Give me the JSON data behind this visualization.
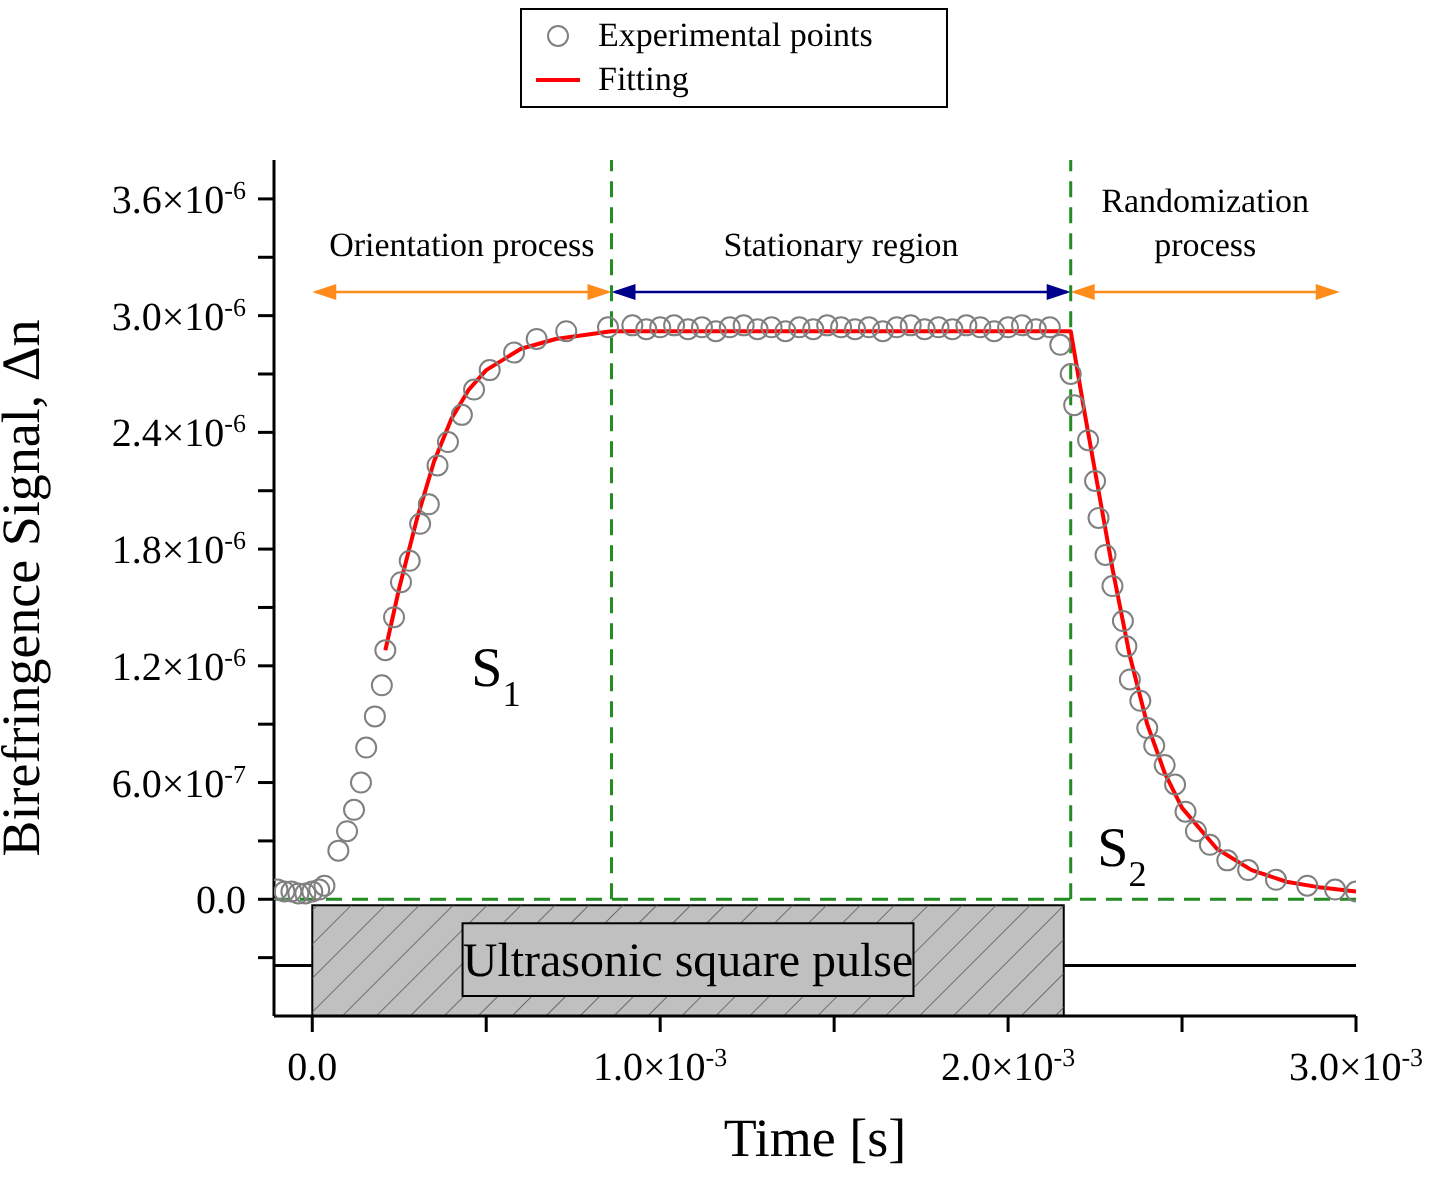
{
  "chart_data": {
    "type": "scatter",
    "xlabel": "Time [s]",
    "ylabel": "Birefringence Signal, Δn",
    "xlim": [
      -0.00011,
      0.003
    ],
    "ylim": [
      -6e-07,
      3.8e-06
    ],
    "xticks": [
      {
        "value": 0,
        "label": "0.0"
      },
      {
        "value": 0.0005,
        "label": null
      },
      {
        "value": 0.001,
        "label": "1.0×10$^{-3}$"
      },
      {
        "value": 0.0015,
        "label": null
      },
      {
        "value": 0.002,
        "label": "2.0×10$^{-3}$"
      },
      {
        "value": 0.0025,
        "label": null
      },
      {
        "value": 0.003,
        "label": "3.0×10$^{-3}$"
      }
    ],
    "yticks": [
      {
        "value": -3e-07,
        "label": null
      },
      {
        "value": 0,
        "label": "0.0"
      },
      {
        "value": 3e-07,
        "label": null
      },
      {
        "value": 6e-07,
        "label": "6.0×10$^{-7}$"
      },
      {
        "value": 9e-07,
        "label": null
      },
      {
        "value": 1.2e-06,
        "label": "1.2×10$^{-6}$"
      },
      {
        "value": 1.5e-06,
        "label": null
      },
      {
        "value": 1.8e-06,
        "label": "1.8×10$^{-6}$"
      },
      {
        "value": 2.1e-06,
        "label": null
      },
      {
        "value": 2.4e-06,
        "label": "2.4×10$^{-6}$"
      },
      {
        "value": 2.7e-06,
        "label": null
      },
      {
        "value": 3e-06,
        "label": "3.0×10$^{-6}$"
      },
      {
        "value": 3.3e-06,
        "label": null
      },
      {
        "value": 3.6e-06,
        "label": "3.6×10$^{-6}$"
      }
    ],
    "grid": false,
    "legend": "top",
    "series": [
      {
        "name": "Experimental points",
        "type": "scatter",
        "color": "#808080",
        "marker": "circle",
        "x": [
          -0.0001,
          -8e-05,
          -6e-05,
          -4e-05,
          -2e-05,
          0.0,
          2e-05,
          3.5e-05,
          7.5e-05,
          0.0001,
          0.00012,
          0.00014,
          0.000155,
          0.00018,
          0.0002,
          0.00021,
          0.000235,
          0.000255,
          0.00028,
          0.00031,
          0.000335,
          0.00036,
          0.00039,
          0.00043,
          0.000465,
          0.00051,
          0.00058,
          0.000645,
          0.00073,
          0.00085,
          0.00092,
          0.00096,
          0.001,
          0.00104,
          0.00108,
          0.00112,
          0.00116,
          0.0012,
          0.00124,
          0.00128,
          0.00132,
          0.00136,
          0.0014,
          0.00144,
          0.00148,
          0.00152,
          0.00156,
          0.0016,
          0.00164,
          0.00168,
          0.00172,
          0.00176,
          0.0018,
          0.00184,
          0.00188,
          0.00192,
          0.00196,
          0.002,
          0.00204,
          0.00208,
          0.00212,
          0.00215,
          0.00218,
          0.00219,
          0.00223,
          0.00225,
          0.00226,
          0.00228,
          0.0023,
          0.00233,
          0.00234,
          0.00235,
          0.00238,
          0.0024,
          0.00242,
          0.00245,
          0.00248,
          0.00251,
          0.00254,
          0.00258,
          0.00263,
          0.00269,
          0.00277,
          0.00286,
          0.00294,
          0.003
        ],
        "values": [
          5e-08,
          4e-08,
          4e-08,
          3e-08,
          3e-08,
          4e-08,
          5e-08,
          7e-08,
          2.5e-07,
          3.5e-07,
          4.6e-07,
          6e-07,
          7.8e-07,
          9.4e-07,
          1.1e-06,
          1.28e-06,
          1.45e-06,
          1.63e-06,
          1.74e-06,
          1.93e-06,
          2.03e-06,
          2.23e-06,
          2.35e-06,
          2.49e-06,
          2.62e-06,
          2.72e-06,
          2.81e-06,
          2.88e-06,
          2.92e-06,
          2.94e-06,
          2.95e-06,
          2.93e-06,
          2.94e-06,
          2.95e-06,
          2.93e-06,
          2.94e-06,
          2.92e-06,
          2.94e-06,
          2.95e-06,
          2.93e-06,
          2.94e-06,
          2.92e-06,
          2.94e-06,
          2.93e-06,
          2.95e-06,
          2.94e-06,
          2.93e-06,
          2.94e-06,
          2.92e-06,
          2.94e-06,
          2.95e-06,
          2.93e-06,
          2.94e-06,
          2.93e-06,
          2.95e-06,
          2.94e-06,
          2.92e-06,
          2.94e-06,
          2.95e-06,
          2.93e-06,
          2.94e-06,
          2.85e-06,
          2.7e-06,
          2.54e-06,
          2.36e-06,
          2.15e-06,
          1.96e-06,
          1.77e-06,
          1.61e-06,
          1.43e-06,
          1.3e-06,
          1.13e-06,
          1.02e-06,
          8.8e-07,
          7.9e-07,
          6.9e-07,
          5.9e-07,
          4.5e-07,
          3.5e-07,
          2.8e-07,
          2e-07,
          1.5e-07,
          1e-07,
          7e-08,
          5e-08,
          4e-08
        ]
      },
      {
        "name": "Fitting",
        "type": "line",
        "color": "#ff0000",
        "marker": "none",
        "x": [
          0.00021,
          0.00025,
          0.0003,
          0.00035,
          0.0004,
          0.00045,
          0.0005,
          0.0006,
          0.0007,
          0.00086,
          0.00218,
          0.00222,
          0.00226,
          0.0023,
          0.00235,
          0.0024,
          0.00245,
          0.0025,
          0.0026,
          0.0027,
          0.0028,
          0.0029,
          0.003
        ],
        "values": [
          1.28e-06,
          1.6e-06,
          1.95e-06,
          2.25e-06,
          2.47e-06,
          2.62e-06,
          2.72e-06,
          2.83e-06,
          2.88e-06,
          2.92e-06,
          2.92e-06,
          2.5e-06,
          2.1e-06,
          1.7e-06,
          1.25e-06,
          9e-07,
          6.5e-07,
          4.7e-07,
          2.6e-07,
          1.5e-07,
          9e-08,
          6e-08,
          4e-08
        ]
      },
      {
        "type": "line",
        "color": "#000000",
        "marker": "none",
        "x": [
          -0.00011,
          0.0,
          0.001,
          0.00216,
          0.003
        ],
        "values": [
          -3.4e-07,
          -3.4e-07,
          null,
          -3.4e-07,
          -3.4e-07
        ]
      }
    ],
    "ref_lines": [
      {
        "axis": "y",
        "value": 0,
        "color": "#228b22",
        "line_style": "dashed"
      },
      {
        "axis": "x",
        "value": 0.00086,
        "color": "#228b22",
        "line_style": "dashed"
      },
      {
        "axis": "x",
        "value": 0.00218,
        "color": "#228b22",
        "line_style": "dashed"
      }
    ],
    "bands": [
      {
        "axis": "x",
        "from": 0,
        "to": 0.00216,
        "label": "Ultrasonic square pulse",
        "color": "#c0c0c0"
      }
    ],
    "annotations": [
      "Orientation process",
      "Stationary region",
      "Randomization process",
      "S$_{1}$",
      "S$_{2}$"
    ]
  }
}
